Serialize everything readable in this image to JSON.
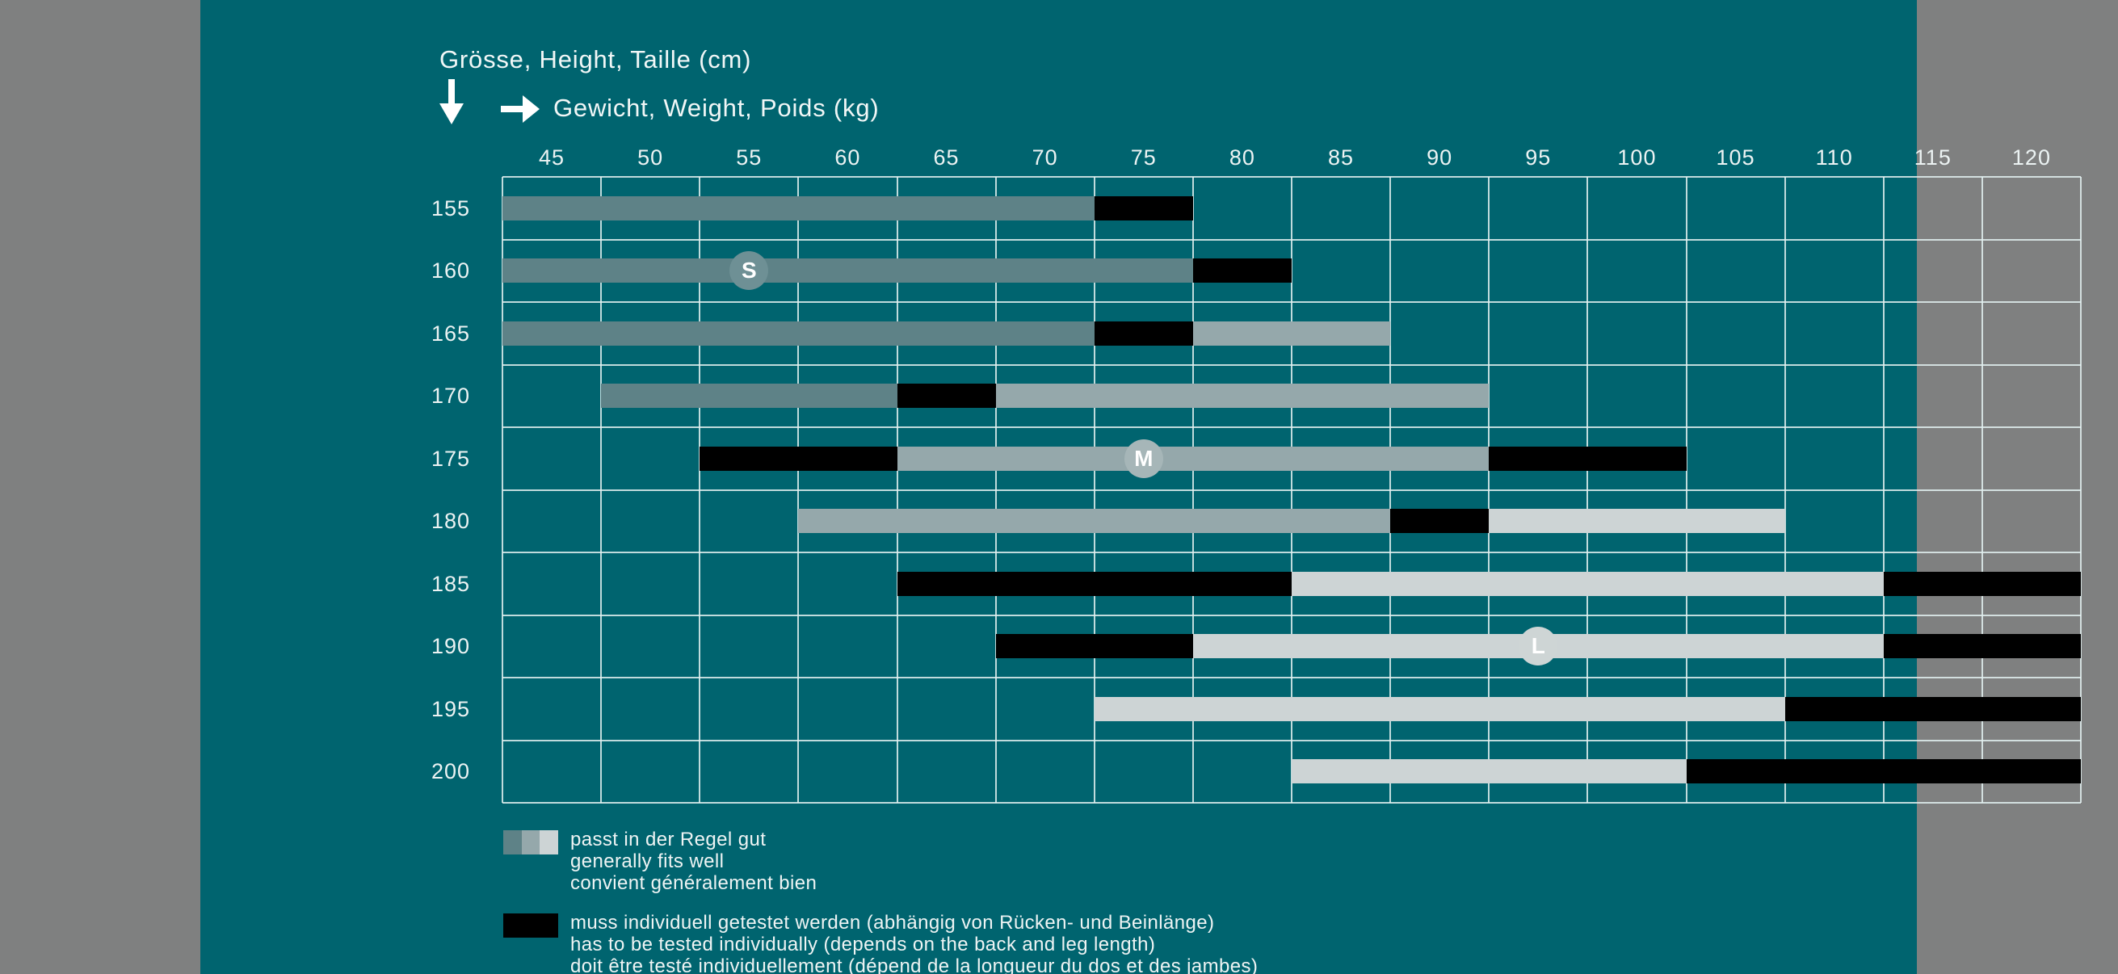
{
  "colors": {
    "background_margin": "#7f8080",
    "panel": "#00646f",
    "grid_line": "#e2f0f0",
    "text": "#f1f7f7",
    "grey_dark": "#5e8287",
    "grey_mid": "#95a8ab",
    "grey_light": "#cdd4d5",
    "black": "#000000",
    "marker_s": "#6e9095",
    "marker_m": "#a6b6b8",
    "marker_l": "#ced5d5"
  },
  "chart_data": {
    "type": "bar",
    "variant": "horizontal-segmented-range-grid",
    "title": "",
    "ylabel": "Grösse, Height, Taille (cm)",
    "xlabel": "Gewicht, Weight, Poids (kg)",
    "x_categories": [
      "45",
      "50",
      "55",
      "60",
      "65",
      "70",
      "75",
      "80",
      "85",
      "90",
      "95",
      "100",
      "105",
      "110",
      "115",
      "120"
    ],
    "x_step_kg": 5,
    "grid": "on",
    "rows": [
      {
        "height": "155",
        "segments": [
          {
            "from": 45,
            "to": 70,
            "style": "grey_dark"
          },
          {
            "from": 75,
            "to": 75,
            "style": "black"
          }
        ]
      },
      {
        "height": "160",
        "segments": [
          {
            "from": 45,
            "to": 75,
            "style": "grey_dark"
          },
          {
            "from": 80,
            "to": 80,
            "style": "black"
          }
        ],
        "marker": {
          "label": "S",
          "at": 55,
          "style": "marker_s"
        }
      },
      {
        "height": "165",
        "segments": [
          {
            "from": 45,
            "to": 70,
            "style": "grey_dark"
          },
          {
            "from": 75,
            "to": 75,
            "style": "black"
          },
          {
            "from": 80,
            "to": 85,
            "style": "grey_mid"
          }
        ]
      },
      {
        "height": "170",
        "segments": [
          {
            "from": 50,
            "to": 60,
            "style": "grey_dark"
          },
          {
            "from": 65,
            "to": 65,
            "style": "black"
          },
          {
            "from": 70,
            "to": 90,
            "style": "grey_mid"
          }
        ]
      },
      {
        "height": "175",
        "segments": [
          {
            "from": 55,
            "to": 60,
            "style": "black"
          },
          {
            "from": 65,
            "to": 90,
            "style": "grey_mid"
          },
          {
            "from": 95,
            "to": 100,
            "style": "black"
          }
        ],
        "marker": {
          "label": "M",
          "at": 75,
          "style": "marker_m"
        }
      },
      {
        "height": "180",
        "segments": [
          {
            "from": 60,
            "to": 85,
            "style": "grey_mid"
          },
          {
            "from": 90,
            "to": 90,
            "style": "black"
          },
          {
            "from": 95,
            "to": 105,
            "style": "grey_light"
          }
        ]
      },
      {
        "height": "185",
        "segments": [
          {
            "from": 65,
            "to": 80,
            "style": "black"
          },
          {
            "from": 85,
            "to": 110,
            "style": "grey_light"
          },
          {
            "from": 115,
            "to": 120,
            "style": "black"
          }
        ]
      },
      {
        "height": "190",
        "segments": [
          {
            "from": 70,
            "to": 75,
            "style": "black"
          },
          {
            "from": 80,
            "to": 110,
            "style": "grey_light"
          },
          {
            "from": 115,
            "to": 120,
            "style": "black"
          }
        ],
        "marker": {
          "label": "L",
          "at": 95,
          "style": "marker_l"
        }
      },
      {
        "height": "195",
        "segments": [
          {
            "from": 75,
            "to": 105,
            "style": "grey_light"
          },
          {
            "from": 110,
            "to": 120,
            "style": "black"
          }
        ]
      },
      {
        "height": "200",
        "segments": [
          {
            "from": 85,
            "to": 100,
            "style": "grey_light"
          },
          {
            "from": 105,
            "to": 120,
            "style": "black"
          }
        ]
      }
    ],
    "legend": {
      "position": "bottom-left",
      "items": [
        {
          "swatch": [
            "grey_dark",
            "grey_mid",
            "grey_light"
          ],
          "lines": [
            "passt in der Regel gut",
            "generally fits well",
            "convient généralement bien"
          ]
        },
        {
          "swatch": [
            "black"
          ],
          "lines": [
            "muss individuell getestet werden (abhängig von Rücken- und Beinlänge)",
            "has to be tested individually (depends on the back and leg length)",
            "doit être testé individuellement (dépend de la longueur du dos et des jambes)"
          ]
        }
      ]
    }
  }
}
